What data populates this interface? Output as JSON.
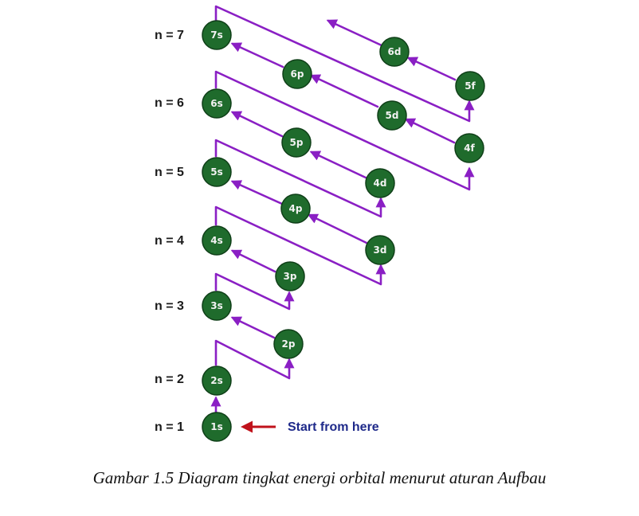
{
  "levels": [
    "n = 1",
    "n = 2",
    "n = 3",
    "n = 4",
    "n = 5",
    "n = 6",
    "n = 7"
  ],
  "orbitals": [
    "1s",
    "2s",
    "2p",
    "3s",
    "3p",
    "3d",
    "4s",
    "4p",
    "4d",
    "4f",
    "5s",
    "5p",
    "5d",
    "5f",
    "6s",
    "6p",
    "6d",
    "7s"
  ],
  "start_label": "Start from here",
  "caption": "Gambar 1.5 Diagram tingkat energi orbital menurut aturan Aufbau",
  "colors": {
    "arrow": "#8a1fc4",
    "orbital": "#1f6b2c",
    "start_arrow": "#c0121b",
    "start_text": "#1f2a8a"
  }
}
